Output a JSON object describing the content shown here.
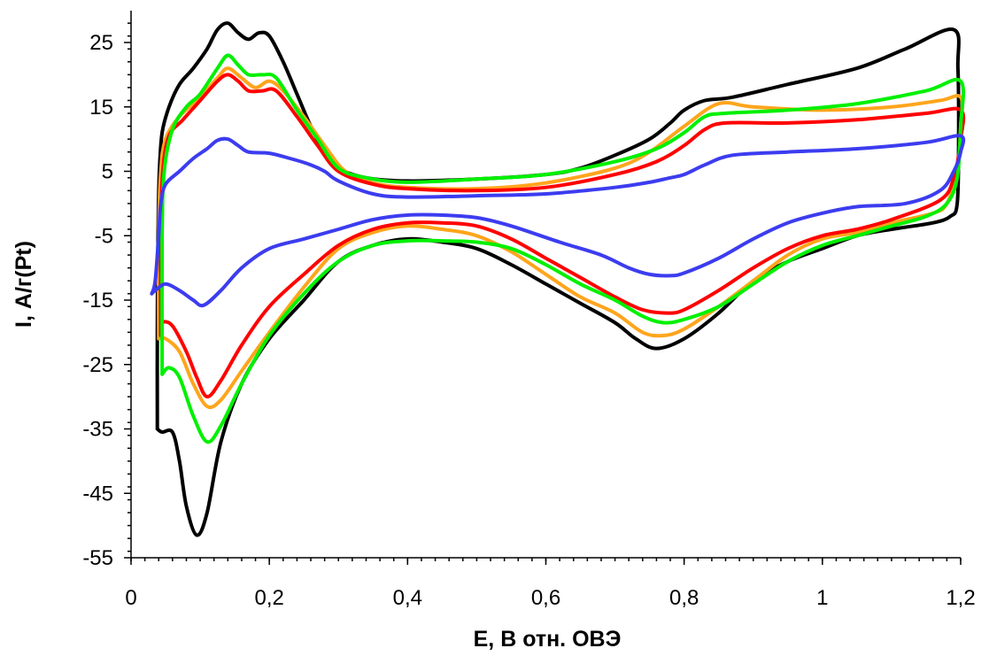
{
  "chart_data": {
    "type": "line",
    "title": "",
    "xlabel": "E, В отн. ОВЭ",
    "ylabel": "I, А/г(Pt)",
    "xlim": [
      0,
      1.2
    ],
    "ylim": [
      -55,
      30
    ],
    "x_ticks": [
      0,
      0.2,
      0.4,
      0.6,
      0.8,
      1,
      1.2
    ],
    "x_tick_labels": [
      "0",
      "0,2",
      "0,4",
      "0,6",
      "0,8",
      "1",
      "1,2"
    ],
    "y_ticks": [
      25,
      15,
      5,
      -5,
      -15,
      -25,
      -35,
      -45,
      -55
    ],
    "y_tick_labels": [
      "25",
      "15",
      "5",
      "-5",
      "-15",
      "-25",
      "-35",
      "-45",
      "-55"
    ],
    "grid": false,
    "legend": "none",
    "series": [
      {
        "color": "#000000",
        "points": [
          [
            0.038,
            -35
          ],
          [
            0.038,
            -20
          ],
          [
            0.039,
            -5
          ],
          [
            0.041,
            5
          ],
          [
            0.045,
            11
          ],
          [
            0.055,
            15
          ],
          [
            0.07,
            18.5
          ],
          [
            0.09,
            21
          ],
          [
            0.11,
            24
          ],
          [
            0.125,
            27
          ],
          [
            0.14,
            28
          ],
          [
            0.155,
            26.5
          ],
          [
            0.17,
            25.5
          ],
          [
            0.185,
            26.5
          ],
          [
            0.2,
            26
          ],
          [
            0.22,
            22
          ],
          [
            0.24,
            17
          ],
          [
            0.26,
            12
          ],
          [
            0.28,
            8
          ],
          [
            0.3,
            5.5
          ],
          [
            0.34,
            4
          ],
          [
            0.4,
            3.5
          ],
          [
            0.5,
            3.8
          ],
          [
            0.6,
            4.5
          ],
          [
            0.65,
            5.5
          ],
          [
            0.7,
            7.5
          ],
          [
            0.75,
            10
          ],
          [
            0.78,
            12.5
          ],
          [
            0.8,
            14.5
          ],
          [
            0.83,
            16
          ],
          [
            0.87,
            16.5
          ],
          [
            0.95,
            18.5
          ],
          [
            1.05,
            21
          ],
          [
            1.12,
            24
          ],
          [
            1.19,
            27
          ],
          [
            1.196,
            21
          ],
          [
            1.197,
            10
          ],
          [
            1.195,
            0
          ],
          [
            1.185,
            -2
          ],
          [
            1.16,
            -3
          ],
          [
            1.1,
            -4
          ],
          [
            1.05,
            -5
          ],
          [
            1.0,
            -7
          ],
          [
            0.95,
            -9
          ],
          [
            0.9,
            -12
          ],
          [
            0.85,
            -17
          ],
          [
            0.8,
            -21
          ],
          [
            0.76,
            -22.5
          ],
          [
            0.73,
            -21
          ],
          [
            0.7,
            -18.5
          ],
          [
            0.65,
            -15.5
          ],
          [
            0.6,
            -12.5
          ],
          [
            0.55,
            -9.5
          ],
          [
            0.5,
            -7
          ],
          [
            0.45,
            -6
          ],
          [
            0.4,
            -5.5
          ],
          [
            0.35,
            -6.5
          ],
          [
            0.3,
            -9
          ],
          [
            0.25,
            -15
          ],
          [
            0.2,
            -21
          ],
          [
            0.16,
            -28
          ],
          [
            0.13,
            -37
          ],
          [
            0.11,
            -48
          ],
          [
            0.095,
            -51.5
          ],
          [
            0.08,
            -47
          ],
          [
            0.07,
            -40
          ],
          [
            0.06,
            -35.5
          ],
          [
            0.045,
            -35.5
          ],
          [
            0.038,
            -35
          ]
        ]
      },
      {
        "color": "#ffa51c",
        "points": [
          [
            0.04,
            -21
          ],
          [
            0.04,
            -5
          ],
          [
            0.043,
            5
          ],
          [
            0.05,
            10
          ],
          [
            0.07,
            13.5
          ],
          [
            0.1,
            16.5
          ],
          [
            0.125,
            19.5
          ],
          [
            0.14,
            21
          ],
          [
            0.16,
            19.5
          ],
          [
            0.18,
            18
          ],
          [
            0.2,
            19
          ],
          [
            0.22,
            17.5
          ],
          [
            0.25,
            13.5
          ],
          [
            0.28,
            9
          ],
          [
            0.31,
            5
          ],
          [
            0.35,
            3.2
          ],
          [
            0.4,
            2.5
          ],
          [
            0.5,
            2.3
          ],
          [
            0.6,
            3.2
          ],
          [
            0.7,
            5.5
          ],
          [
            0.75,
            8
          ],
          [
            0.8,
            12
          ],
          [
            0.85,
            15.5
          ],
          [
            0.9,
            15
          ],
          [
            1.0,
            14.5
          ],
          [
            1.1,
            15
          ],
          [
            1.17,
            16
          ],
          [
            1.2,
            16.5
          ],
          [
            1.2,
            12
          ],
          [
            1.195,
            5
          ],
          [
            1.18,
            0
          ],
          [
            1.16,
            -1.5
          ],
          [
            1.1,
            -3
          ],
          [
            1.05,
            -4.5
          ],
          [
            1.0,
            -5.5
          ],
          [
            0.95,
            -8
          ],
          [
            0.9,
            -12
          ],
          [
            0.85,
            -16
          ],
          [
            0.8,
            -19.5
          ],
          [
            0.77,
            -20.5
          ],
          [
            0.74,
            -20
          ],
          [
            0.7,
            -17
          ],
          [
            0.65,
            -14.5
          ],
          [
            0.6,
            -11
          ],
          [
            0.55,
            -7.5
          ],
          [
            0.5,
            -5
          ],
          [
            0.45,
            -4
          ],
          [
            0.4,
            -3.5
          ],
          [
            0.35,
            -4.5
          ],
          [
            0.3,
            -7
          ],
          [
            0.25,
            -13
          ],
          [
            0.2,
            -20
          ],
          [
            0.16,
            -26
          ],
          [
            0.13,
            -30.5
          ],
          [
            0.11,
            -31.5
          ],
          [
            0.09,
            -28
          ],
          [
            0.07,
            -23
          ],
          [
            0.05,
            -21
          ],
          [
            0.04,
            -21
          ]
        ]
      },
      {
        "color": "#ff0000",
        "points": [
          [
            0.043,
            -20.5
          ],
          [
            0.043,
            -5
          ],
          [
            0.046,
            5
          ],
          [
            0.055,
            10.5
          ],
          [
            0.075,
            13
          ],
          [
            0.1,
            16
          ],
          [
            0.125,
            19
          ],
          [
            0.14,
            20
          ],
          [
            0.155,
            19
          ],
          [
            0.17,
            17.5
          ],
          [
            0.19,
            17.5
          ],
          [
            0.21,
            17.5
          ],
          [
            0.24,
            13.5
          ],
          [
            0.27,
            9
          ],
          [
            0.3,
            5
          ],
          [
            0.35,
            3
          ],
          [
            0.4,
            2.3
          ],
          [
            0.5,
            2
          ],
          [
            0.6,
            2.5
          ],
          [
            0.7,
            4.5
          ],
          [
            0.76,
            6.5
          ],
          [
            0.8,
            9
          ],
          [
            0.83,
            11.5
          ],
          [
            0.86,
            12.5
          ],
          [
            0.95,
            12.5
          ],
          [
            1.05,
            13
          ],
          [
            1.15,
            14
          ],
          [
            1.2,
            14.5
          ],
          [
            1.2,
            10
          ],
          [
            1.19,
            4
          ],
          [
            1.17,
            0.5
          ],
          [
            1.1,
            -2.5
          ],
          [
            1.05,
            -4
          ],
          [
            1.0,
            -5
          ],
          [
            0.95,
            -7
          ],
          [
            0.9,
            -10
          ],
          [
            0.85,
            -13.5
          ],
          [
            0.8,
            -16.5
          ],
          [
            0.775,
            -17
          ],
          [
            0.74,
            -16.5
          ],
          [
            0.7,
            -14.5
          ],
          [
            0.65,
            -11.5
          ],
          [
            0.6,
            -8.5
          ],
          [
            0.55,
            -5.5
          ],
          [
            0.5,
            -3.5
          ],
          [
            0.45,
            -3
          ],
          [
            0.4,
            -3
          ],
          [
            0.35,
            -4
          ],
          [
            0.3,
            -6.5
          ],
          [
            0.25,
            -11
          ],
          [
            0.2,
            -16
          ],
          [
            0.16,
            -22
          ],
          [
            0.13,
            -27.5
          ],
          [
            0.11,
            -30
          ],
          [
            0.095,
            -27
          ],
          [
            0.08,
            -23
          ],
          [
            0.06,
            -19
          ],
          [
            0.045,
            -18.5
          ],
          [
            0.043,
            -20.5
          ]
        ]
      },
      {
        "color": "#00f000",
        "points": [
          [
            0.045,
            -26.5
          ],
          [
            0.045,
            -5
          ],
          [
            0.048,
            5
          ],
          [
            0.06,
            11.5
          ],
          [
            0.08,
            15
          ],
          [
            0.1,
            17
          ],
          [
            0.125,
            21
          ],
          [
            0.14,
            23
          ],
          [
            0.155,
            21.5
          ],
          [
            0.17,
            20
          ],
          [
            0.19,
            20
          ],
          [
            0.21,
            19.5
          ],
          [
            0.24,
            14.5
          ],
          [
            0.27,
            10
          ],
          [
            0.3,
            5.5
          ],
          [
            0.34,
            4
          ],
          [
            0.4,
            3.3
          ],
          [
            0.5,
            3.8
          ],
          [
            0.6,
            4.5
          ],
          [
            0.7,
            6.5
          ],
          [
            0.76,
            8.5
          ],
          [
            0.8,
            11
          ],
          [
            0.83,
            13.5
          ],
          [
            0.86,
            14
          ],
          [
            0.95,
            14.5
          ],
          [
            1.05,
            15.5
          ],
          [
            1.15,
            17.5
          ],
          [
            1.2,
            19
          ],
          [
            1.2,
            12
          ],
          [
            1.195,
            4
          ],
          [
            1.18,
            0
          ],
          [
            1.15,
            -2
          ],
          [
            1.1,
            -3.5
          ],
          [
            1.05,
            -5
          ],
          [
            1.0,
            -6.5
          ],
          [
            0.95,
            -9
          ],
          [
            0.9,
            -12.5
          ],
          [
            0.85,
            -16
          ],
          [
            0.8,
            -18
          ],
          [
            0.77,
            -18.5
          ],
          [
            0.74,
            -17.5
          ],
          [
            0.7,
            -15
          ],
          [
            0.65,
            -12.5
          ],
          [
            0.6,
            -9.5
          ],
          [
            0.55,
            -7
          ],
          [
            0.5,
            -6
          ],
          [
            0.45,
            -5.8
          ],
          [
            0.4,
            -5.8
          ],
          [
            0.35,
            -6.5
          ],
          [
            0.3,
            -9
          ],
          [
            0.25,
            -14
          ],
          [
            0.2,
            -20.5
          ],
          [
            0.16,
            -28
          ],
          [
            0.13,
            -34.5
          ],
          [
            0.11,
            -37
          ],
          [
            0.09,
            -33
          ],
          [
            0.07,
            -27
          ],
          [
            0.055,
            -25.5
          ],
          [
            0.045,
            -26.5
          ]
        ]
      },
      {
        "color": "#3c3cf0",
        "points": [
          [
            0.03,
            -14
          ],
          [
            0.035,
            -12
          ],
          [
            0.04,
            -5
          ],
          [
            0.043,
            0
          ],
          [
            0.05,
            3
          ],
          [
            0.07,
            5
          ],
          [
            0.09,
            7
          ],
          [
            0.11,
            8.5
          ],
          [
            0.125,
            9.8
          ],
          [
            0.14,
            10
          ],
          [
            0.155,
            9
          ],
          [
            0.17,
            8
          ],
          [
            0.2,
            7.8
          ],
          [
            0.23,
            7
          ],
          [
            0.26,
            6
          ],
          [
            0.28,
            5
          ],
          [
            0.3,
            3.5
          ],
          [
            0.35,
            1.5
          ],
          [
            0.4,
            1
          ],
          [
            0.5,
            1.2
          ],
          [
            0.6,
            1.5
          ],
          [
            0.7,
            2.5
          ],
          [
            0.75,
            3.3
          ],
          [
            0.78,
            4
          ],
          [
            0.8,
            4.5
          ],
          [
            0.83,
            6
          ],
          [
            0.87,
            7.5
          ],
          [
            0.95,
            8
          ],
          [
            1.05,
            8.5
          ],
          [
            1.15,
            9.5
          ],
          [
            1.2,
            10.5
          ],
          [
            1.2,
            8
          ],
          [
            1.19,
            5
          ],
          [
            1.17,
            2
          ],
          [
            1.12,
            0
          ],
          [
            1.05,
            -0.5
          ],
          [
            1.0,
            -1.5
          ],
          [
            0.95,
            -3
          ],
          [
            0.9,
            -5.5
          ],
          [
            0.85,
            -8.5
          ],
          [
            0.8,
            -10.8
          ],
          [
            0.78,
            -11.2
          ],
          [
            0.75,
            -11
          ],
          [
            0.72,
            -10
          ],
          [
            0.68,
            -8
          ],
          [
            0.62,
            -6
          ],
          [
            0.55,
            -3.5
          ],
          [
            0.5,
            -2.2
          ],
          [
            0.45,
            -1.8
          ],
          [
            0.4,
            -1.8
          ],
          [
            0.35,
            -2.5
          ],
          [
            0.3,
            -4
          ],
          [
            0.25,
            -5.5
          ],
          [
            0.2,
            -7
          ],
          [
            0.16,
            -10
          ],
          [
            0.13,
            -13.5
          ],
          [
            0.105,
            -15.8
          ],
          [
            0.09,
            -15
          ],
          [
            0.07,
            -13.5
          ],
          [
            0.05,
            -12.5
          ],
          [
            0.035,
            -13.5
          ],
          [
            0.03,
            -14
          ]
        ]
      }
    ]
  }
}
